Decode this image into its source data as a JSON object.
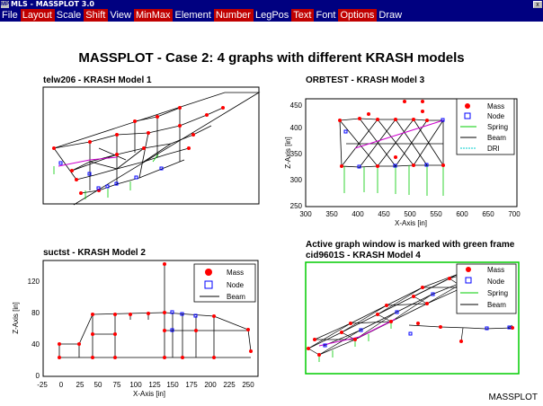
{
  "window": {
    "title": "MLS - MASSPLOT 3.0",
    "icon": "MP",
    "close": "x"
  },
  "menu": [
    {
      "label": "File",
      "highlight": false
    },
    {
      "label": "Layout",
      "highlight": true
    },
    {
      "label": "Scale",
      "highlight": false
    },
    {
      "label": "Shift",
      "highlight": true
    },
    {
      "label": "View",
      "highlight": false
    },
    {
      "label": "MinMax",
      "highlight": true
    },
    {
      "label": "Element",
      "highlight": false
    },
    {
      "label": "Number",
      "highlight": true
    },
    {
      "label": "LegPos",
      "highlight": false
    },
    {
      "label": "Text",
      "highlight": true
    },
    {
      "label": "Font",
      "highlight": false
    },
    {
      "label": "Options",
      "highlight": true
    },
    {
      "label": "Draw",
      "highlight": false
    }
  ],
  "main_title": "MASSPLOT - Case 2:  4 graphs with different KRASH models",
  "graphs": {
    "g1": {
      "label": "telw206 - KRASH Model 1"
    },
    "g2": {
      "label": "suctst - KRASH Model 2",
      "xlabel": "X-Axis [in]",
      "ylabel": "Z-Axis [in]",
      "xticks": [
        "-25",
        "0",
        "25",
        "50",
        "75",
        "100",
        "125",
        "150",
        "175",
        "200",
        "225",
        "250"
      ],
      "yticks": [
        "0",
        "40",
        "80",
        "120"
      ]
    },
    "g3": {
      "label": "ORBTEST - KRASH Model 3",
      "xlabel": "X-Axis [in]",
      "ylabel": "Z-Axis [in]",
      "xticks": [
        "300",
        "350",
        "400",
        "450",
        "500",
        "550",
        "600",
        "650",
        "700"
      ],
      "yticks": [
        "250",
        "300",
        "350",
        "400",
        "450"
      ]
    },
    "g4": {
      "label_line1": "Active graph window is marked with green frame",
      "label_line2": "cid9601S - KRASH Model 4"
    }
  },
  "legend": {
    "mass": "Mass",
    "node": "Node",
    "spring": "Spring",
    "beam": "Beam",
    "dri": "DRI"
  },
  "footer": "MASSPLOT",
  "colors": {
    "menubar": "#000080",
    "menu_highlight": "#c00000",
    "mass": "#ff0000",
    "node": "#0000ff",
    "spring": "#00cc00",
    "dri": "#00cccc",
    "active_frame": "#00cc00"
  }
}
